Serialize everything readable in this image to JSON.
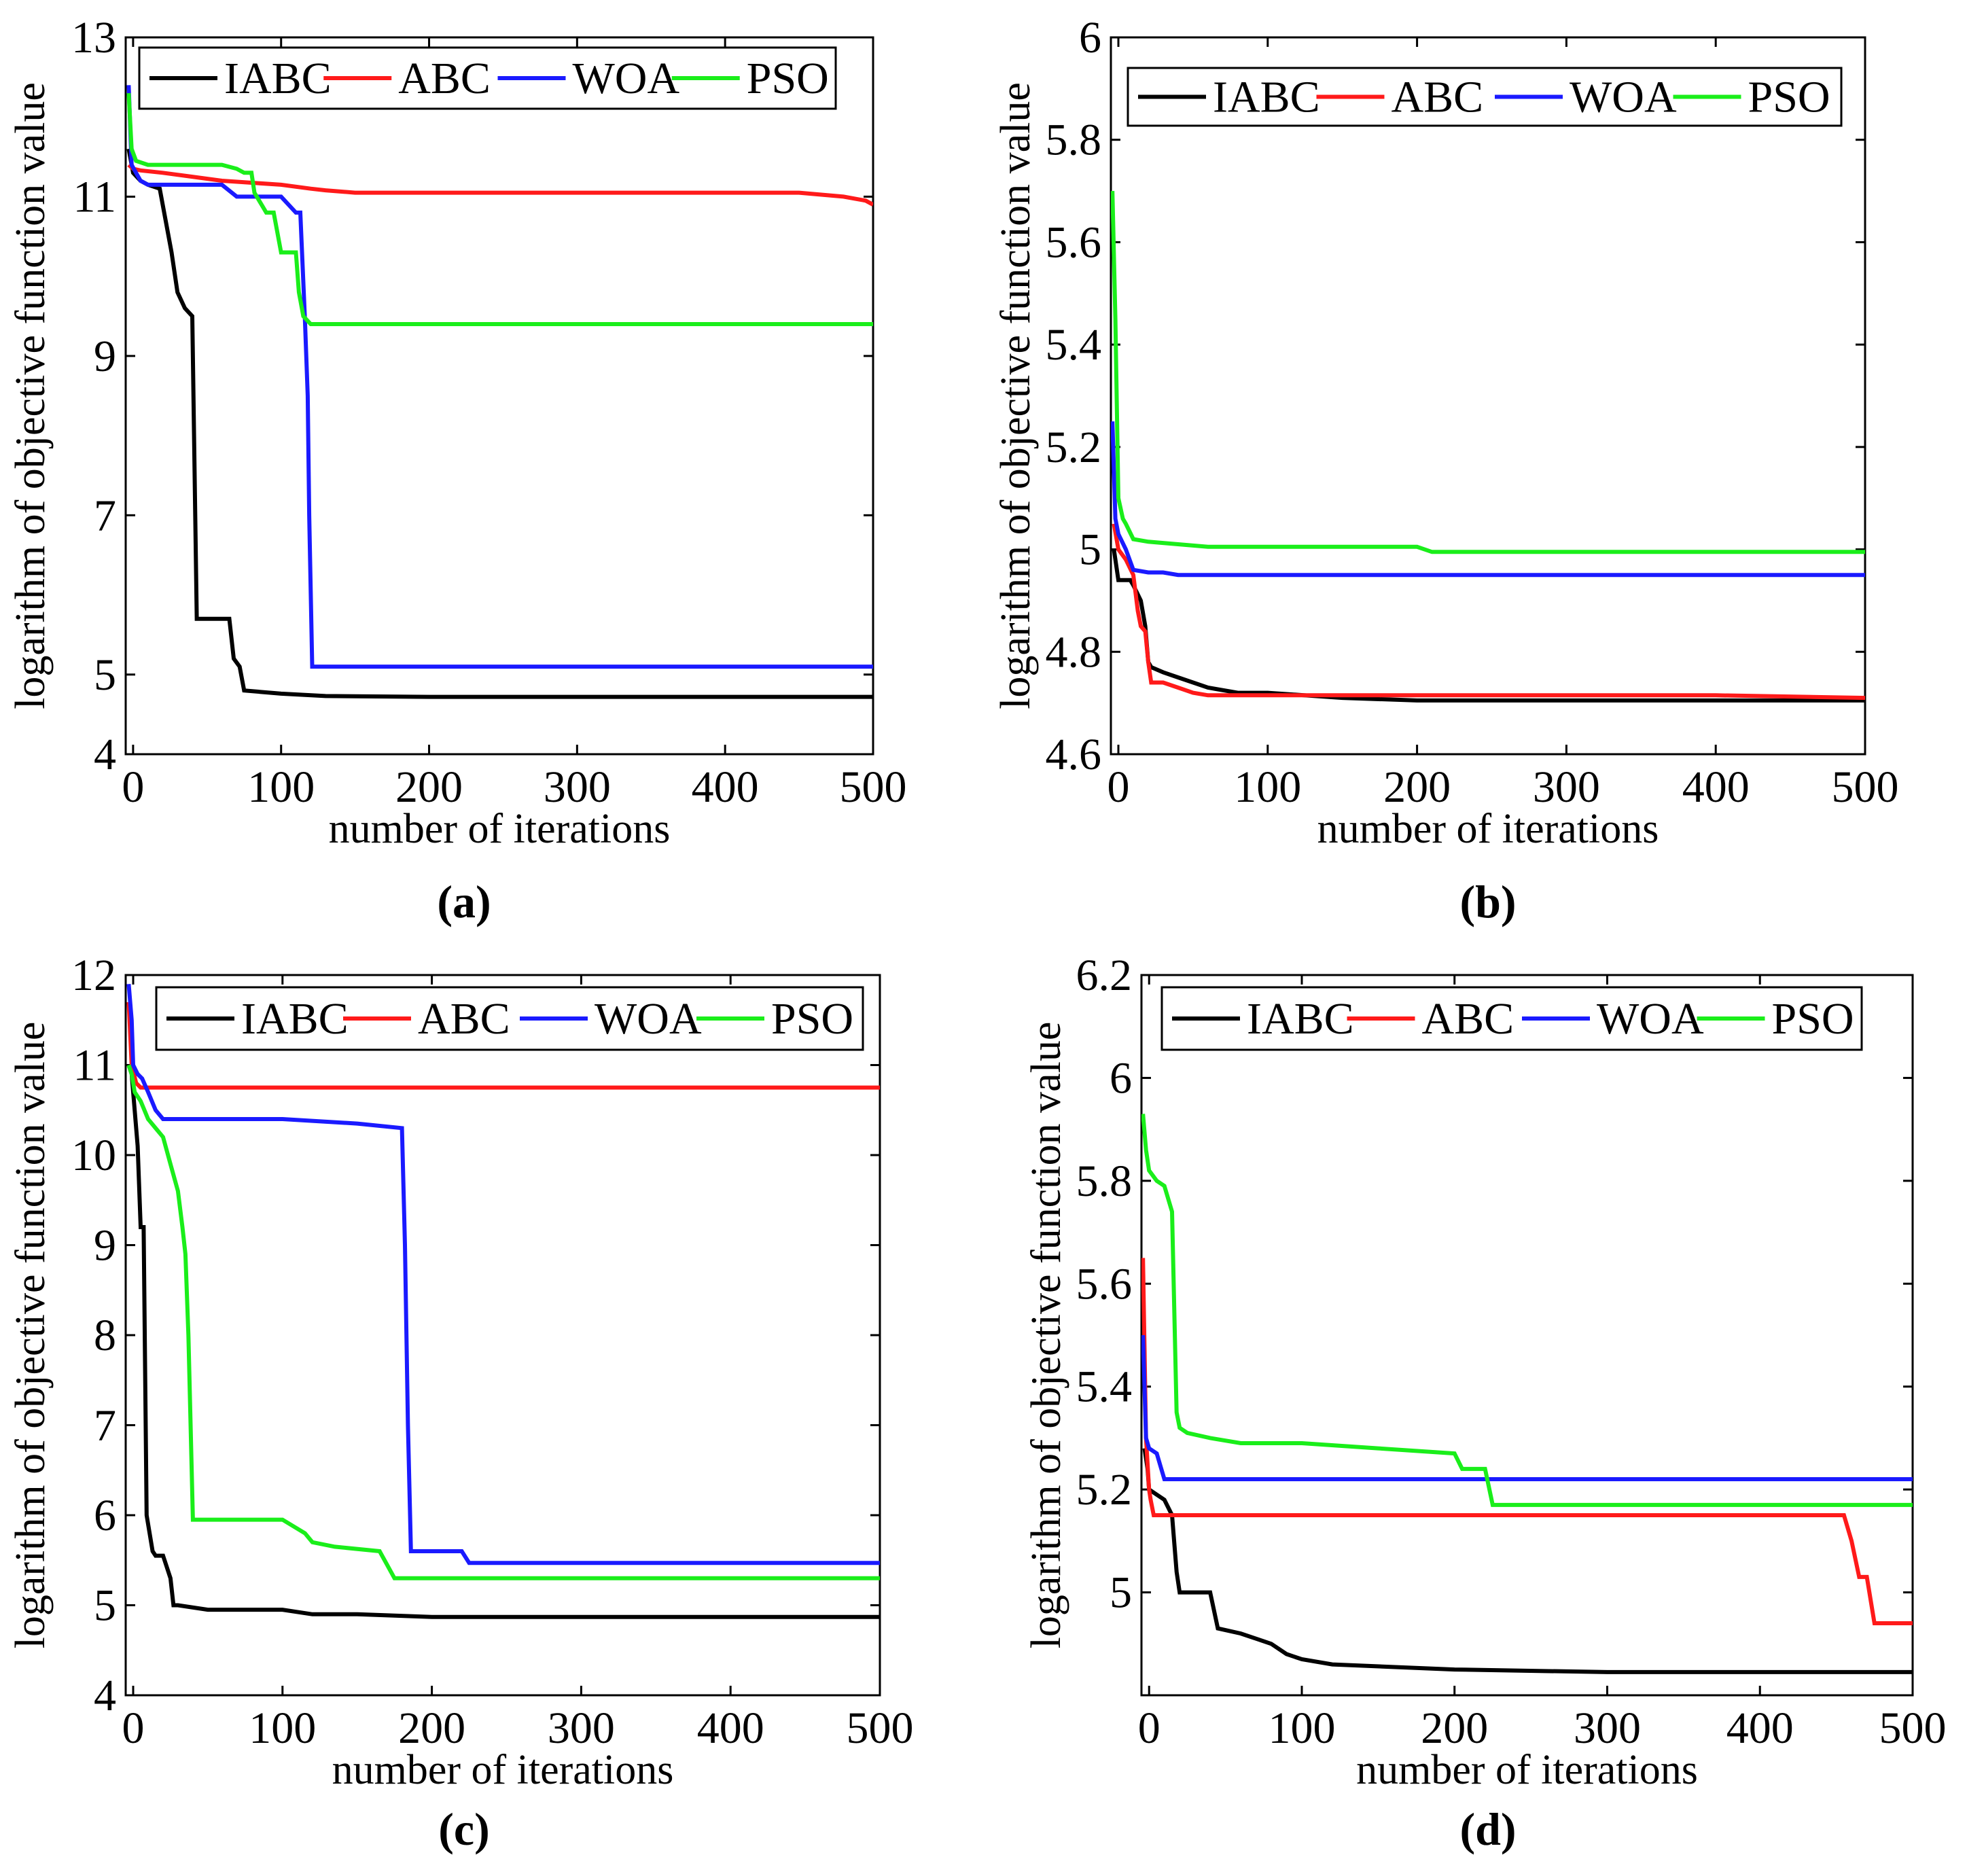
{
  "figure": {
    "series_colors": {
      "IABC": "#000000",
      "ABC": "#ff1a1a",
      "WOA": "#1a1aff",
      "PSO": "#1aee1a"
    }
  },
  "chart_data": [
    {
      "type": "line",
      "panel_label": "(a)",
      "xlabel": "number of iterations",
      "ylabel": "logarithm of objective function value",
      "xlim": [
        -5,
        500
      ],
      "ylim": [
        4,
        13
      ],
      "xticks": [
        0,
        100,
        200,
        300,
        400,
        500
      ],
      "xtick_labels": [
        "0",
        "100",
        "200",
        "300",
        "400",
        "500"
      ],
      "yticks": [
        4,
        5,
        7,
        9,
        11,
        13
      ],
      "ytick_labels": [
        "4",
        "5",
        "7",
        "9",
        "11",
        "13"
      ],
      "legend": [
        "IABC",
        "ABC",
        "WOA",
        "PSO"
      ],
      "series": [
        {
          "name": "IABC",
          "x": [
            -3,
            0,
            5,
            10,
            18,
            22,
            26,
            30,
            35,
            40,
            43,
            55,
            65,
            68,
            72,
            75,
            100,
            130,
            200,
            300,
            400,
            500
          ],
          "y": [
            11.6,
            11.3,
            11.2,
            11.15,
            11.1,
            10.7,
            10.3,
            9.8,
            9.6,
            9.5,
            5.7,
            5.7,
            5.7,
            5.2,
            5.1,
            4.8,
            4.76,
            4.73,
            4.72,
            4.72,
            4.72,
            4.72
          ]
        },
        {
          "name": "ABC",
          "x": [
            -3,
            0,
            5,
            20,
            40,
            60,
            100,
            120,
            130,
            150,
            200,
            300,
            400,
            450,
            480,
            495,
            500
          ],
          "y": [
            11.4,
            11.35,
            11.33,
            11.3,
            11.25,
            11.2,
            11.15,
            11.1,
            11.08,
            11.05,
            11.05,
            11.05,
            11.05,
            11.05,
            11.0,
            10.95,
            10.9
          ]
        },
        {
          "name": "WOA",
          "x": [
            -3,
            -1,
            2,
            5,
            10,
            20,
            40,
            60,
            70,
            75,
            100,
            110,
            113,
            116,
            118,
            119,
            121,
            200,
            300,
            400,
            500
          ],
          "y": [
            12.4,
            11.4,
            11.3,
            11.2,
            11.15,
            11.15,
            11.15,
            11.15,
            11.0,
            11.0,
            11.0,
            10.8,
            10.8,
            9.5,
            8.5,
            7.0,
            5.1,
            5.1,
            5.1,
            5.1,
            5.1
          ]
        },
        {
          "name": "PSO",
          "x": [
            -3,
            -1,
            2,
            10,
            30,
            60,
            70,
            75,
            80,
            82,
            90,
            95,
            100,
            110,
            112,
            115,
            120,
            200,
            300,
            400,
            500
          ],
          "y": [
            12.3,
            11.6,
            11.45,
            11.4,
            11.4,
            11.4,
            11.35,
            11.3,
            11.3,
            11.05,
            10.8,
            10.8,
            10.3,
            10.3,
            9.8,
            9.5,
            9.4,
            9.4,
            9.4,
            9.4,
            9.4
          ]
        }
      ]
    },
    {
      "type": "line",
      "panel_label": "(b)",
      "xlabel": "number of iterations",
      "ylabel": "logarithm of objective function value",
      "xlim": [
        -5,
        500
      ],
      "ylim": [
        4.6,
        6
      ],
      "xticks": [
        0,
        100,
        200,
        300,
        400,
        500
      ],
      "xtick_labels": [
        "0",
        "100",
        "200",
        "300",
        "400",
        "500"
      ],
      "yticks": [
        4.6,
        4.8,
        5,
        5.2,
        5.4,
        5.6,
        5.8,
        6
      ],
      "ytick_labels": [
        "4.6",
        "4.8",
        "5",
        "5.2",
        "5.4",
        "5.6",
        "5.8",
        "6"
      ],
      "legend": [
        "IABC",
        "ABC",
        "WOA",
        "PSO"
      ],
      "series": [
        {
          "name": "IABC",
          "x": [
            -3,
            0,
            8,
            10,
            15,
            18,
            20,
            22,
            30,
            40,
            60,
            80,
            100,
            150,
            200,
            300,
            400,
            500
          ],
          "y": [
            5.0,
            4.94,
            4.94,
            4.93,
            4.9,
            4.85,
            4.78,
            4.77,
            4.76,
            4.75,
            4.73,
            4.72,
            4.72,
            4.71,
            4.705,
            4.705,
            4.705,
            4.705
          ]
        },
        {
          "name": "ABC",
          "x": [
            -3,
            0,
            5,
            10,
            13,
            15,
            18,
            20,
            22,
            30,
            40,
            50,
            60,
            100,
            200,
            300,
            400,
            500
          ],
          "y": [
            5.05,
            5.0,
            4.98,
            4.95,
            4.88,
            4.85,
            4.84,
            4.78,
            4.74,
            4.74,
            4.73,
            4.72,
            4.715,
            4.715,
            4.715,
            4.715,
            4.715,
            4.71
          ]
        },
        {
          "name": "WOA",
          "x": [
            -4,
            -2,
            0,
            5,
            10,
            20,
            30,
            40,
            100,
            200,
            300,
            400,
            500
          ],
          "y": [
            5.25,
            5.06,
            5.03,
            5.0,
            4.96,
            4.955,
            4.955,
            4.95,
            4.95,
            4.95,
            4.95,
            4.95,
            4.95
          ]
        },
        {
          "name": "PSO",
          "x": [
            -4,
            -2,
            0,
            3,
            5,
            10,
            20,
            40,
            60,
            100,
            150,
            200,
            210,
            300,
            400,
            500
          ],
          "y": [
            5.7,
            5.45,
            5.1,
            5.06,
            5.05,
            5.02,
            5.015,
            5.01,
            5.005,
            5.005,
            5.005,
            5.005,
            4.995,
            4.995,
            4.995,
            4.995
          ]
        }
      ]
    },
    {
      "type": "line",
      "panel_label": "(c)",
      "xlabel": "number of iterations",
      "ylabel": "logarithm of objective function value",
      "xlim": [
        -5,
        500
      ],
      "ylim": [
        4,
        12
      ],
      "xticks": [
        0,
        100,
        200,
        300,
        400,
        500
      ],
      "xtick_labels": [
        "0",
        "100",
        "200",
        "300",
        "400",
        "500"
      ],
      "yticks": [
        4,
        5,
        6,
        7,
        8,
        9,
        10,
        11,
        12
      ],
      "ytick_labels": [
        "4",
        "5",
        "6",
        "7",
        "8",
        "9",
        "10",
        "11",
        "12"
      ],
      "legend": [
        "IABC",
        "ABC",
        "WOA",
        "PSO"
      ],
      "series": [
        {
          "name": "IABC",
          "x": [
            -3,
            -1,
            1,
            3,
            5,
            7,
            9,
            11,
            13,
            15,
            20,
            25,
            27,
            30,
            50,
            100,
            120,
            150,
            200,
            300,
            400,
            500
          ],
          "y": [
            11.0,
            10.9,
            10.5,
            10.1,
            9.2,
            9.2,
            6.0,
            5.8,
            5.6,
            5.55,
            5.55,
            5.3,
            5.0,
            5.0,
            4.95,
            4.95,
            4.9,
            4.9,
            4.87,
            4.87,
            4.87,
            4.87
          ]
        },
        {
          "name": "ABC",
          "x": [
            -3,
            -1,
            2,
            5,
            10,
            100,
            200,
            300,
            400,
            500
          ],
          "y": [
            11.7,
            11.0,
            10.8,
            10.75,
            10.75,
            10.75,
            10.75,
            10.75,
            10.75,
            10.75
          ]
        },
        {
          "name": "WOA",
          "x": [
            -3,
            -1,
            0,
            3,
            6,
            10,
            15,
            20,
            100,
            150,
            180,
            182,
            184,
            186,
            220,
            225,
            300,
            400,
            500
          ],
          "y": [
            11.9,
            11.5,
            11.0,
            10.9,
            10.85,
            10.7,
            10.5,
            10.4,
            10.4,
            10.35,
            10.3,
            9.0,
            7.0,
            5.6,
            5.6,
            5.47,
            5.47,
            5.47,
            5.47
          ]
        },
        {
          "name": "PSO",
          "x": [
            -3,
            -1,
            1,
            5,
            10,
            15,
            20,
            25,
            30,
            33,
            35,
            37,
            40,
            100,
            115,
            120,
            135,
            165,
            170,
            175,
            200,
            300,
            400,
            500
          ],
          "y": [
            11.0,
            10.9,
            10.7,
            10.6,
            10.4,
            10.3,
            10.2,
            9.9,
            9.6,
            9.2,
            8.9,
            8.0,
            5.95,
            5.95,
            5.8,
            5.7,
            5.65,
            5.6,
            5.45,
            5.3,
            5.3,
            5.3,
            5.3,
            5.3
          ]
        }
      ]
    },
    {
      "type": "line",
      "panel_label": "(d)",
      "xlabel": "number of iterations",
      "ylabel": "logarithm of objective function value",
      "xlim": [
        -5,
        500
      ],
      "ylim": [
        4.8,
        6.2
      ],
      "xticks": [
        0,
        100,
        200,
        300,
        400,
        500
      ],
      "xtick_labels": [
        "0",
        "100",
        "200",
        "300",
        "400",
        "500"
      ],
      "yticks": [
        5,
        5.2,
        5.4,
        5.6,
        5.8,
        6,
        6.2
      ],
      "ytick_labels": [
        "5",
        "5.2",
        "5.4",
        "5.6",
        "5.8",
        "6",
        "6.2"
      ],
      "legend": [
        "IABC",
        "ABC",
        "WOA",
        "PSO"
      ],
      "series": [
        {
          "name": "IABC",
          "x": [
            -3,
            -1,
            0,
            5,
            10,
            15,
            18,
            20,
            40,
            45,
            60,
            70,
            80,
            90,
            100,
            120,
            200,
            300,
            400,
            500
          ],
          "y": [
            5.28,
            5.24,
            5.2,
            5.19,
            5.18,
            5.15,
            5.04,
            5.0,
            5.0,
            4.93,
            4.92,
            4.91,
            4.9,
            4.88,
            4.87,
            4.86,
            4.85,
            4.845,
            4.845,
            4.845
          ]
        },
        {
          "name": "ABC",
          "x": [
            -4,
            -2,
            0,
            1,
            3,
            5,
            100,
            200,
            300,
            400,
            455,
            460,
            465,
            470,
            475,
            480,
            500
          ],
          "y": [
            5.65,
            5.3,
            5.2,
            5.18,
            5.15,
            5.15,
            5.15,
            5.15,
            5.15,
            5.15,
            5.15,
            5.1,
            5.03,
            5.03,
            4.94,
            4.94,
            4.94
          ]
        },
        {
          "name": "WOA",
          "x": [
            -4,
            -2,
            0,
            5,
            8,
            10,
            15,
            100,
            200,
            300,
            400,
            500
          ],
          "y": [
            5.5,
            5.3,
            5.28,
            5.27,
            5.24,
            5.22,
            5.22,
            5.22,
            5.22,
            5.22,
            5.22,
            5.22
          ]
        },
        {
          "name": "PSO",
          "x": [
            -4,
            -2,
            0,
            5,
            10,
            15,
            18,
            20,
            25,
            40,
            60,
            100,
            150,
            200,
            205,
            220,
            225,
            300,
            400,
            500
          ],
          "y": [
            5.93,
            5.86,
            5.82,
            5.8,
            5.79,
            5.74,
            5.35,
            5.32,
            5.31,
            5.3,
            5.29,
            5.29,
            5.28,
            5.27,
            5.24,
            5.24,
            5.17,
            5.17,
            5.17,
            5.17
          ]
        }
      ]
    }
  ]
}
